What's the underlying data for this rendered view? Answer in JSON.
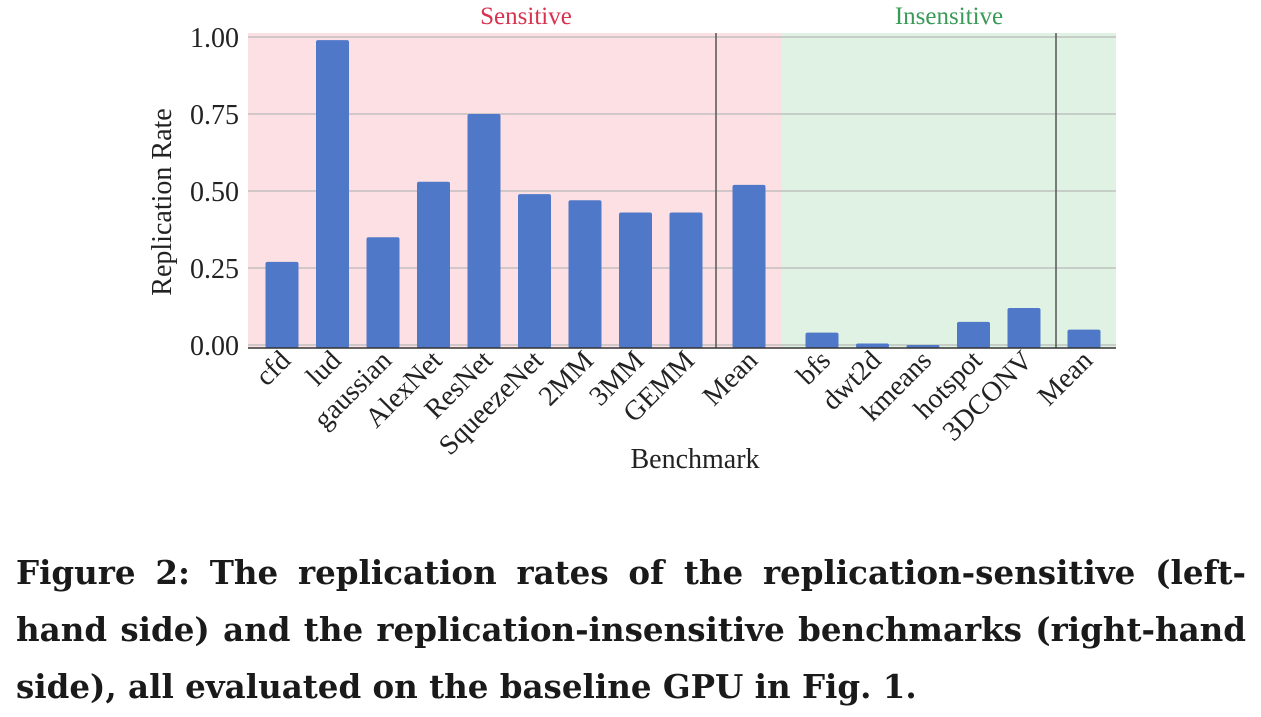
{
  "chart_data": {
    "type": "bar",
    "xlabel": "Benchmark",
    "ylabel": "Replication Rate",
    "ylim": [
      0,
      1.0
    ],
    "yticks": [
      "0.00",
      "0.25",
      "0.50",
      "0.75",
      "1.00"
    ],
    "ytick_values": [
      0,
      0.25,
      0.5,
      0.75,
      1.0
    ],
    "grid": true,
    "bar_color": "#4f78c8",
    "groups": [
      {
        "name": "Sensitive",
        "color": "#d6334f",
        "background": "#fde0e4",
        "categories": [
          "cfd",
          "lud",
          "gaussian",
          "AlexNet",
          "ResNet",
          "SqueezeNet",
          "2MM",
          "3MM",
          "GEMM"
        ],
        "values": [
          0.27,
          0.99,
          0.35,
          0.53,
          0.75,
          0.49,
          0.47,
          0.43,
          0.43
        ],
        "mean_label": "Mean",
        "mean_value": 0.52
      },
      {
        "name": "Insensitive",
        "color": "#3a9a58",
        "background": "#dff2e3",
        "categories": [
          "bfs",
          "dwt2d",
          "kmeans",
          "hotspot",
          "3DCONV"
        ],
        "values": [
          0.04,
          0.005,
          0.0,
          0.075,
          0.12
        ],
        "mean_label": "Mean",
        "mean_value": 0.05
      }
    ]
  },
  "caption": "Figure 2: The replication rates of the replication-sensitive (left-hand side) and the replication-insensitive benchmarks (right-hand side), all evaluated on the baseline GPU in Fig. 1."
}
